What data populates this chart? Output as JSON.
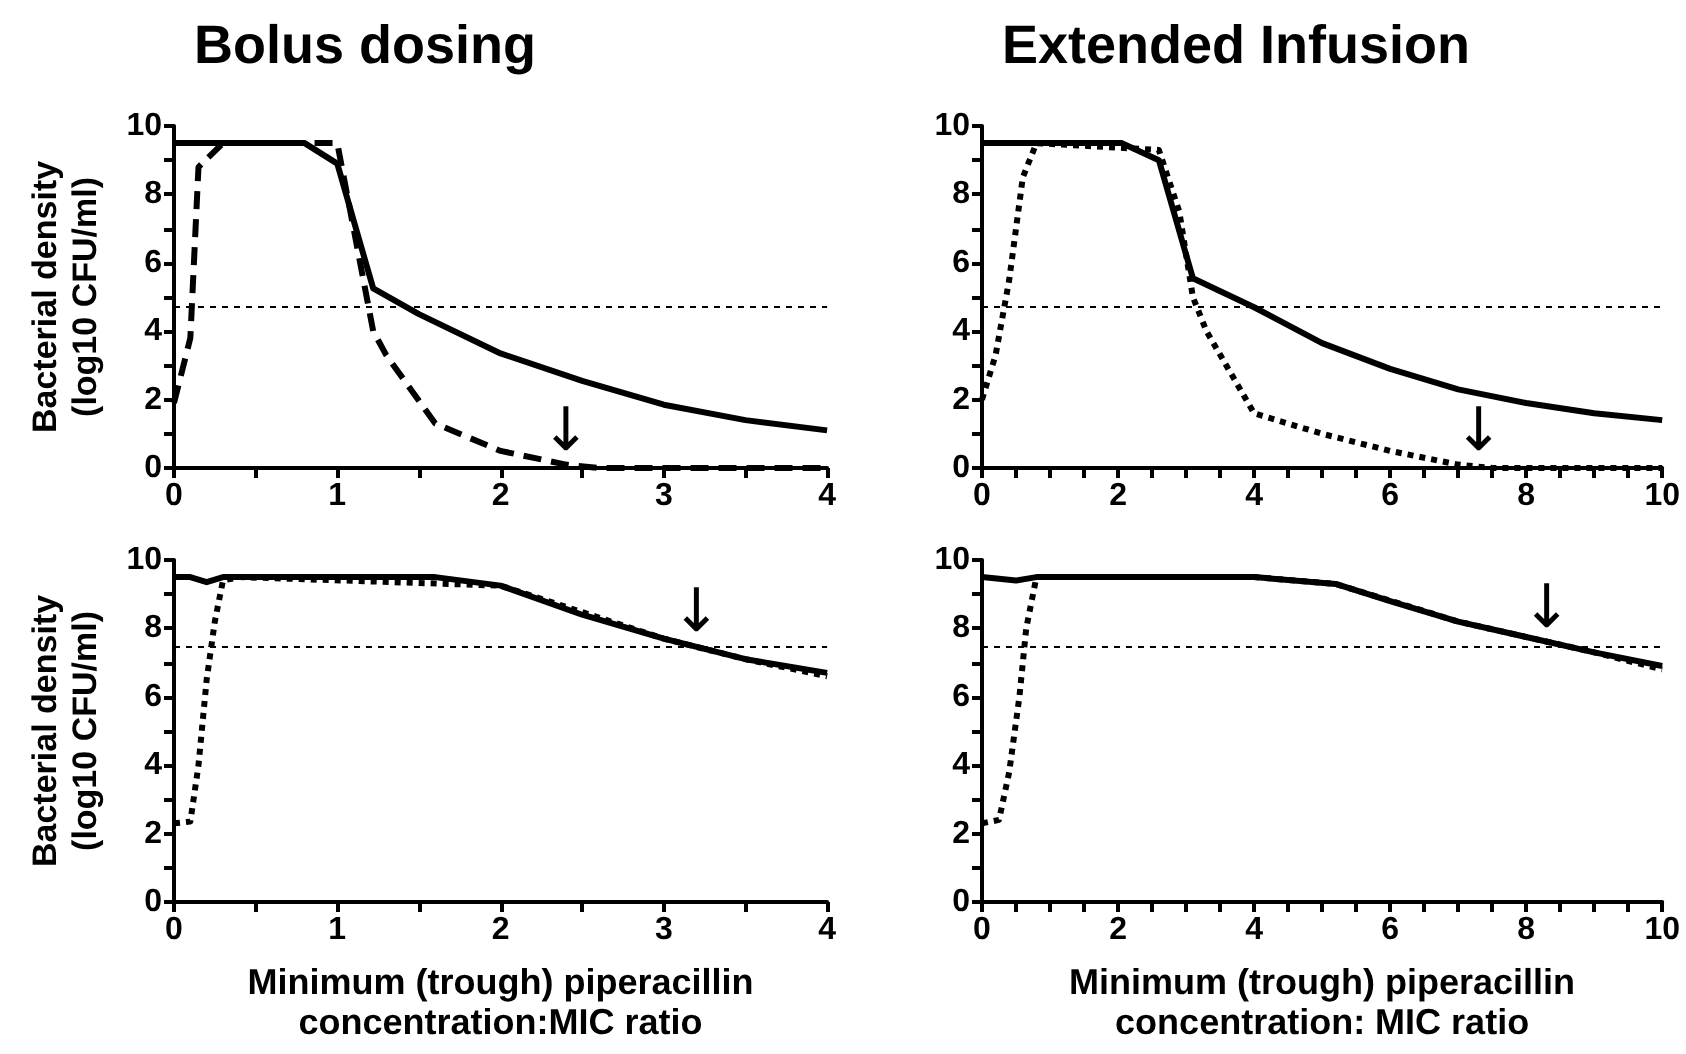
{
  "chart_data": [
    {
      "type": "line",
      "title": "Bolus dosing",
      "ylabel": "Bacterial density\n(log10 CFU/ml)",
      "xlim": [
        0,
        4
      ],
      "ylim": [
        0,
        10
      ],
      "xticks": [
        0,
        {
          "value": 0.5,
          "label": null
        },
        1,
        {
          "value": 1.5,
          "label": null
        },
        2,
        {
          "value": 2.5,
          "label": null
        },
        3,
        {
          "value": 3.5,
          "label": null
        },
        4
      ],
      "yticks": [
        0,
        {
          "value": 1,
          "label": null
        },
        2,
        {
          "value": 3,
          "label": null
        },
        4,
        {
          "value": 5,
          "label": null
        },
        6,
        {
          "value": 7,
          "label": null
        },
        8,
        {
          "value": 9,
          "label": null
        },
        10
      ],
      "grid": false,
      "marker": "none",
      "series": [
        {
          "color": "#000000",
          "line_style": "solid",
          "x": [
            0,
            0.8,
            1.0,
            1.22,
            1.5,
            2,
            2.5,
            3,
            3.5,
            4
          ],
          "values": [
            9.5,
            9.5,
            8.9,
            5.25,
            4.5,
            3.35,
            2.55,
            1.85,
            1.4,
            1.1
          ]
        },
        {
          "color": "#000000",
          "line_style": "dashed",
          "x": [
            0,
            0.1,
            0.15,
            0.3,
            1.0,
            1.22,
            1.3,
            1.6,
            2,
            2.4,
            2.6,
            4
          ],
          "values": [
            1.9,
            3.8,
            8.8,
            9.5,
            9.5,
            4.0,
            3.3,
            1.3,
            0.5,
            0.1,
            0,
            0
          ]
        }
      ],
      "ref_lines": [
        {
          "axis": "y",
          "value": 4.7,
          "line_style": "dotted",
          "color": "#000000"
        }
      ],
      "annotations": [
        {
          "text": "↓",
          "x": 2.4,
          "y": 0.1
        }
      ]
    },
    {
      "type": "line",
      "title": "Extended Infusion",
      "xlim": [
        0,
        10
      ],
      "ylim": [
        0,
        10
      ],
      "xticks": [
        0,
        {
          "value": 0.5,
          "label": null
        },
        {
          "value": 1,
          "label": null
        },
        {
          "value": 1.5,
          "label": null
        },
        2,
        {
          "value": 2.5,
          "label": null
        },
        {
          "value": 3,
          "label": null
        },
        {
          "value": 3.5,
          "label": null
        },
        4,
        {
          "value": 4.5,
          "label": null
        },
        {
          "value": 5,
          "label": null
        },
        {
          "value": 5.5,
          "label": null
        },
        6,
        {
          "value": 6.5,
          "label": null
        },
        {
          "value": 7,
          "label": null
        },
        {
          "value": 7.5,
          "label": null
        },
        8,
        {
          "value": 8.5,
          "label": null
        },
        {
          "value": 9,
          "label": null
        },
        {
          "value": 9.5,
          "label": null
        },
        10
      ],
      "yticks": [
        0,
        {
          "value": 1,
          "label": null
        },
        2,
        {
          "value": 3,
          "label": null
        },
        4,
        {
          "value": 5,
          "label": null
        },
        6,
        {
          "value": 7,
          "label": null
        },
        8,
        {
          "value": 9,
          "label": null
        },
        10
      ],
      "grid": false,
      "marker": "none",
      "series": [
        {
          "color": "#000000",
          "line_style": "solid",
          "x": [
            0,
            2.05,
            2.6,
            3.1,
            4,
            5,
            6,
            7,
            8,
            9,
            10
          ],
          "values": [
            9.5,
            9.5,
            9.0,
            5.55,
            4.7,
            3.65,
            2.9,
            2.3,
            1.9,
            1.6,
            1.4
          ]
        },
        {
          "color": "#000000",
          "line_style": "dotted",
          "x": [
            0,
            0.2,
            0.4,
            0.6,
            0.8,
            2.6,
            2.9,
            3.1,
            3.3,
            4,
            5,
            6,
            7,
            7.5,
            10
          ],
          "values": [
            2.0,
            3.3,
            5.5,
            8.5,
            9.5,
            9.3,
            7.5,
            5,
            4.0,
            1.6,
            1.0,
            0.5,
            0.1,
            0,
            0
          ]
        }
      ],
      "ref_lines": [
        {
          "axis": "y",
          "value": 4.7,
          "line_style": "dotted",
          "color": "#000000"
        }
      ],
      "annotations": [
        {
          "text": "↓",
          "x": 7.3,
          "y": 0.1
        }
      ]
    },
    {
      "type": "line",
      "ylabel": "Bacterial density\n(log10 CFU/ml)",
      "xlabel": "Minimum (trough) piperacillin\nconcentration:MIC ratio",
      "xlim": [
        0,
        4
      ],
      "ylim": [
        0,
        10
      ],
      "xticks": [
        0,
        {
          "value": 0.5,
          "label": null
        },
        1,
        {
          "value": 1.5,
          "label": null
        },
        2,
        {
          "value": 2.5,
          "label": null
        },
        3,
        {
          "value": 3.5,
          "label": null
        },
        4
      ],
      "yticks": [
        0,
        {
          "value": 1,
          "label": null
        },
        2,
        {
          "value": 3,
          "label": null
        },
        4,
        {
          "value": 5,
          "label": null
        },
        6,
        {
          "value": 7,
          "label": null
        },
        8,
        {
          "value": 9,
          "label": null
        },
        10
      ],
      "grid": false,
      "marker": "none",
      "series": [
        {
          "color": "#000000",
          "line_style": "solid",
          "x": [
            0,
            0.1,
            0.2,
            0.3,
            1.6,
            2,
            2.5,
            3,
            3.5,
            4
          ],
          "values": [
            9.5,
            9.5,
            9.35,
            9.5,
            9.5,
            9.25,
            8.4,
            7.7,
            7.1,
            6.7
          ]
        },
        {
          "color": "#000000",
          "line_style": "dotted",
          "x": [
            0,
            0.1,
            0.15,
            0.2,
            0.25,
            0.3,
            0.4,
            2,
            3,
            3.5,
            4
          ],
          "values": [
            2.3,
            2.35,
            4,
            6.5,
            8.2,
            9.4,
            9.5,
            9.25,
            7.7,
            7.1,
            6.6
          ]
        }
      ],
      "ref_lines": [
        {
          "axis": "y",
          "value": 7.5,
          "line_style": "dotted",
          "color": "#000000"
        }
      ],
      "annotations": [
        {
          "text": "↓",
          "x": 3.2,
          "y": 7.5
        }
      ]
    },
    {
      "type": "line",
      "xlabel": "Minimum (trough) piperacillin\nconcentration: MIC ratio",
      "xlim": [
        0,
        10
      ],
      "ylim": [
        0,
        10
      ],
      "xticks": [
        0,
        {
          "value": 0.5,
          "label": null
        },
        {
          "value": 1,
          "label": null
        },
        {
          "value": 1.5,
          "label": null
        },
        2,
        {
          "value": 2.5,
          "label": null
        },
        {
          "value": 3,
          "label": null
        },
        {
          "value": 3.5,
          "label": null
        },
        4,
        {
          "value": 4.5,
          "label": null
        },
        {
          "value": 5,
          "label": null
        },
        {
          "value": 5.5,
          "label": null
        },
        6,
        {
          "value": 6.5,
          "label": null
        },
        {
          "value": 7,
          "label": null
        },
        {
          "value": 7.5,
          "label": null
        },
        8,
        {
          "value": 8.5,
          "label": null
        },
        {
          "value": 9,
          "label": null
        },
        {
          "value": 9.5,
          "label": null
        },
        10
      ],
      "yticks": [
        0,
        {
          "value": 1,
          "label": null
        },
        2,
        {
          "value": 3,
          "label": null
        },
        4,
        {
          "value": 5,
          "label": null
        },
        6,
        {
          "value": 7,
          "label": null
        },
        8,
        {
          "value": 9,
          "label": null
        },
        10
      ],
      "grid": false,
      "marker": "none",
      "series": [
        {
          "color": "#000000",
          "line_style": "solid",
          "x": [
            0,
            0.5,
            0.8,
            4,
            5.2,
            6,
            7,
            8,
            9,
            10
          ],
          "values": [
            9.5,
            9.4,
            9.5,
            9.5,
            9.3,
            8.8,
            8.2,
            7.75,
            7.3,
            6.9
          ]
        },
        {
          "color": "#000000",
          "line_style": "dotted",
          "x": [
            0,
            0.25,
            0.4,
            0.55,
            0.65,
            0.8,
            4,
            5.2,
            7,
            8,
            9,
            10
          ],
          "values": [
            2.3,
            2.4,
            3.8,
            6,
            8,
            9.5,
            9.5,
            9.3,
            8.2,
            7.75,
            7.3,
            6.8
          ]
        }
      ],
      "ref_lines": [
        {
          "axis": "y",
          "value": 7.5,
          "line_style": "dotted",
          "color": "#000000"
        }
      ],
      "annotations": [
        {
          "text": "↓",
          "x": 8.3,
          "y": 7.6
        }
      ]
    }
  ]
}
